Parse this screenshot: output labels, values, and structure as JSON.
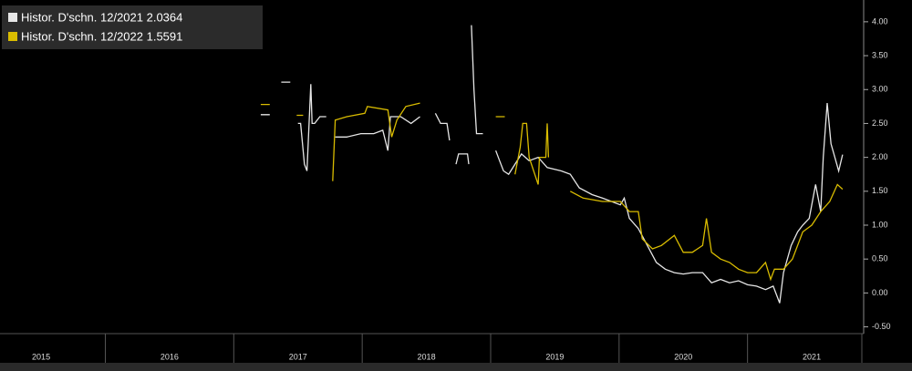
{
  "chart_data": {
    "type": "line",
    "series": [
      {
        "name": "Histor. D'schn. 12/2021 2.0364",
        "color": "#e6e6e6",
        "x": [
          2017.21,
          2017.28,
          null,
          2017.37,
          2017.44,
          null,
          2017.5,
          2017.52,
          2017.55,
          2017.57,
          2017.6,
          2017.61,
          2017.63,
          2017.67,
          2017.72,
          null,
          2017.79,
          2017.88,
          2017.99,
          2018.09,
          2018.16,
          2018.2,
          2018.22,
          2018.3,
          2018.38,
          2018.45,
          null,
          2018.57,
          2018.61,
          2018.66,
          2018.68,
          null,
          2018.73,
          2018.75,
          2018.82,
          2018.83,
          null,
          2018.85,
          2018.87,
          2018.89,
          2018.94,
          null,
          2019.04,
          2019.07,
          2019.1,
          2019.14,
          2019.19,
          2019.24,
          2019.3,
          2019.37,
          2019.44,
          2019.55,
          2019.62,
          2019.69,
          2019.79,
          2019.87,
          2019.94,
          2020.01,
          2020.04,
          2020.08,
          2020.15,
          2020.22,
          2020.29,
          2020.36,
          2020.43,
          2020.5,
          2020.57,
          2020.65,
          2020.72,
          2020.79,
          2020.86,
          2020.93,
          2021.0,
          2021.07,
          2021.14,
          2021.2,
          2021.25,
          2021.28,
          2021.34,
          2021.39,
          2021.43,
          2021.48,
          2021.53,
          2021.57,
          2021.59,
          2021.62,
          2021.65,
          2021.68,
          2021.71,
          2021.74
        ],
        "values": [
          2.63,
          2.63,
          null,
          3.11,
          3.11,
          null,
          2.5,
          2.5,
          1.9,
          1.8,
          3.08,
          2.5,
          2.5,
          2.6,
          2.6,
          null,
          2.3,
          2.3,
          2.35,
          2.35,
          2.4,
          2.1,
          2.6,
          2.6,
          2.5,
          2.6,
          null,
          2.65,
          2.5,
          2.5,
          2.25,
          null,
          1.9,
          2.05,
          2.05,
          1.9,
          null,
          3.95,
          3.0,
          2.35,
          2.35,
          null,
          2.1,
          1.95,
          1.8,
          1.75,
          1.9,
          2.05,
          1.95,
          2.0,
          1.85,
          1.8,
          1.75,
          1.55,
          1.45,
          1.4,
          1.35,
          1.3,
          1.4,
          1.1,
          0.95,
          0.7,
          0.45,
          0.35,
          0.3,
          0.28,
          0.3,
          0.3,
          0.15,
          0.2,
          0.15,
          0.18,
          0.12,
          0.1,
          0.05,
          0.1,
          -0.15,
          0.3,
          0.7,
          0.9,
          1.0,
          1.1,
          1.6,
          1.2,
          2.0,
          2.8,
          2.2,
          2.0,
          1.8,
          2.04
        ]
      },
      {
        "name": "Histor. D'schn. 12/2022 1.5591",
        "color": "#d9bc00",
        "x": [
          2017.21,
          2017.28,
          null,
          2017.49,
          2017.54,
          null,
          2017.77,
          2017.79,
          2017.88,
          2018.02,
          2018.04,
          2018.2,
          2018.23,
          2018.27,
          2018.34,
          2018.45,
          null,
          2019.04,
          2019.11,
          null,
          2019.19,
          2019.23,
          2019.25,
          2019.28,
          2019.3,
          2019.37,
          2019.38,
          2019.43,
          2019.44,
          2019.45,
          null,
          2019.62,
          2019.72,
          2019.87,
          2020.01,
          2020.08,
          2020.15,
          2020.18,
          2020.26,
          2020.33,
          2020.43,
          2020.5,
          2020.57,
          2020.65,
          2020.68,
          2020.72,
          2020.79,
          2020.86,
          2020.93,
          2021.0,
          2021.07,
          2021.14,
          2021.18,
          2021.21,
          2021.28,
          2021.35,
          2021.43,
          2021.5,
          2021.57,
          2021.64,
          2021.7,
          2021.74
        ],
        "values": [
          2.78,
          2.78,
          null,
          2.62,
          2.62,
          null,
          1.65,
          2.55,
          2.6,
          2.65,
          2.75,
          2.7,
          2.3,
          2.55,
          2.75,
          2.8,
          null,
          2.6,
          2.6,
          null,
          1.75,
          2.15,
          2.5,
          2.5,
          2.0,
          1.6,
          2.0,
          2.0,
          2.5,
          2.0,
          null,
          1.5,
          1.4,
          1.35,
          1.35,
          1.2,
          1.2,
          0.8,
          0.65,
          0.7,
          0.85,
          0.6,
          0.6,
          0.7,
          1.1,
          0.6,
          0.5,
          0.45,
          0.35,
          0.3,
          0.3,
          0.45,
          0.2,
          0.35,
          0.35,
          0.5,
          0.9,
          1.0,
          1.2,
          1.35,
          1.6,
          1.53
        ]
      }
    ],
    "xlim": [
      2015.18,
      2021.89
    ],
    "xticks": [
      {
        "value": 2015.5,
        "label": "2015"
      },
      {
        "value": 2016.5,
        "label": "2016"
      },
      {
        "value": 2017.5,
        "label": "2017"
      },
      {
        "value": 2018.5,
        "label": "2018"
      },
      {
        "value": 2019.5,
        "label": "2019"
      },
      {
        "value": 2020.5,
        "label": "2020"
      },
      {
        "value": 2021.5,
        "label": "2021"
      }
    ],
    "ylim": [
      -0.6,
      4.2
    ],
    "yticks": [
      {
        "value": -0.5,
        "label": "-0.50"
      },
      {
        "value": 0,
        "label": "0.00"
      },
      {
        "value": 0.5,
        "label": "0.50"
      },
      {
        "value": 1,
        "label": "1.00"
      },
      {
        "value": 1.5,
        "label": "1.50"
      },
      {
        "value": 2,
        "label": "2.00"
      },
      {
        "value": 2.5,
        "label": "2.50"
      },
      {
        "value": 3,
        "label": "3.00"
      },
      {
        "value": 3.5,
        "label": "3.50"
      },
      {
        "value": 4,
        "label": "4.00"
      }
    ],
    "legend": "top-left"
  }
}
